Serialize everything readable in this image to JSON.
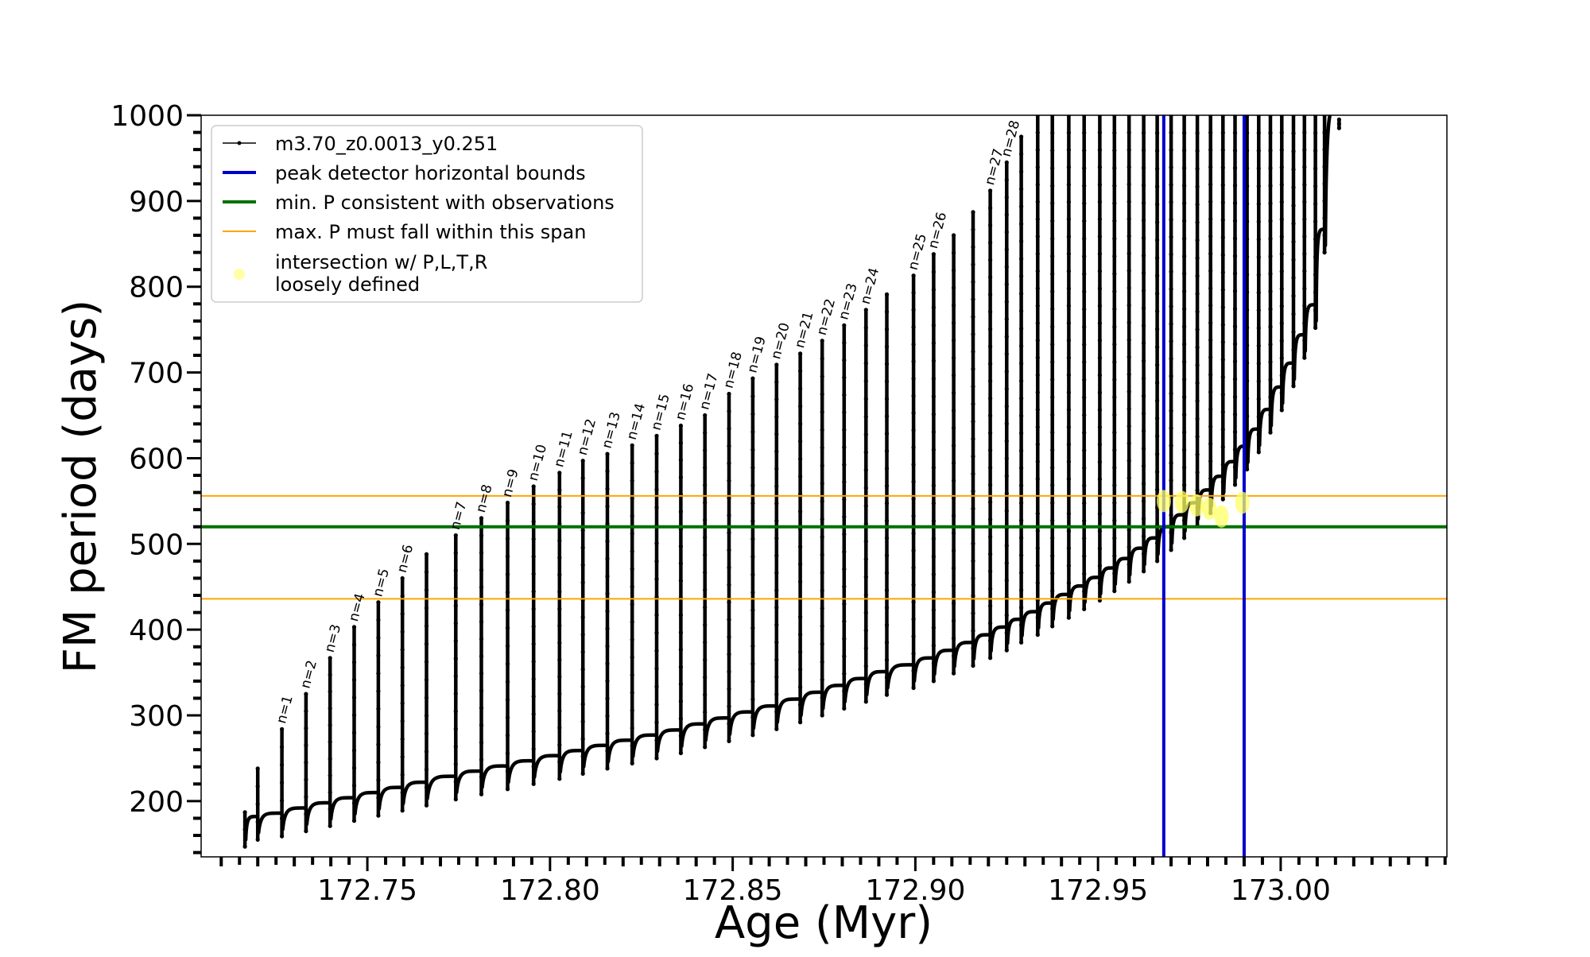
{
  "chart_data": {
    "type": "line",
    "title": "",
    "xlabel": "Age (Myr)",
    "ylabel": "FM period (days)",
    "xlim": [
      172.7045,
      173.0455
    ],
    "ylim": [
      135,
      1000
    ],
    "x_ticks": [
      172.75,
      172.8,
      172.85,
      172.9,
      172.95,
      173.0
    ],
    "x_tick_labels": [
      "172.75",
      "172.80",
      "172.85",
      "172.90",
      "172.95",
      "173.00"
    ],
    "y_ticks": [
      200,
      300,
      400,
      500,
      600,
      700,
      800,
      900,
      1000
    ],
    "y_tick_labels": [
      "200",
      "300",
      "400",
      "500",
      "600",
      "700",
      "800",
      "900",
      "1000"
    ],
    "grid": false,
    "legend_position": "top-left",
    "legend": [
      {
        "label": "m3.70_z0.0013_y0.251",
        "style": "line-marker",
        "color": "#000000"
      },
      {
        "label": "peak detector horizontal bounds",
        "style": "line",
        "color": "#0000cc"
      },
      {
        "label": "min. P consistent with observations",
        "style": "line",
        "color": "#007000"
      },
      {
        "label": "max. P must fall within this span",
        "style": "line",
        "color": "#ffa500"
      },
      {
        "label": "intersection w/ P,L,T,R\nloosely defined",
        "style": "marker",
        "color": "#ffff66"
      }
    ],
    "series": [
      {
        "name": "m3.70_z0.0013_y0.251",
        "color": "#000000",
        "pulses": [
          {
            "x": 172.7165,
            "lo": 147,
            "hi": 187
          },
          {
            "x": 172.72,
            "lo": 155,
            "hi": 238
          },
          {
            "x": 172.7266,
            "lo": 159,
            "hi": 284,
            "label": "n=1"
          },
          {
            "x": 172.7332,
            "lo": 165,
            "hi": 325,
            "label": "n=2"
          },
          {
            "x": 172.7398,
            "lo": 171,
            "hi": 367,
            "label": "n=3"
          },
          {
            "x": 172.7464,
            "lo": 177,
            "hi": 403,
            "label": "n=4"
          },
          {
            "x": 172.753,
            "lo": 183,
            "hi": 432,
            "label": "n=5"
          },
          {
            "x": 172.7596,
            "lo": 189,
            "hi": 460,
            "label": "n=6"
          },
          {
            "x": 172.7662,
            "lo": 195,
            "hi": 488
          },
          {
            "x": 172.7742,
            "lo": 202,
            "hi": 510,
            "label": "n=7"
          },
          {
            "x": 172.7812,
            "lo": 208,
            "hi": 530,
            "label": "n=8"
          },
          {
            "x": 172.7884,
            "lo": 214,
            "hi": 548,
            "label": "n=9"
          },
          {
            "x": 172.7955,
            "lo": 220,
            "hi": 567,
            "label": "n=10"
          },
          {
            "x": 172.8026,
            "lo": 226,
            "hi": 583,
            "label": "n=11"
          },
          {
            "x": 172.809,
            "lo": 232,
            "hi": 597,
            "label": "n=12"
          },
          {
            "x": 172.8157,
            "lo": 238,
            "hi": 605,
            "label": "n=13"
          },
          {
            "x": 172.8225,
            "lo": 244,
            "hi": 615,
            "label": "n=14"
          },
          {
            "x": 172.8292,
            "lo": 250,
            "hi": 626,
            "label": "n=15"
          },
          {
            "x": 172.8358,
            "lo": 256,
            "hi": 638,
            "label": "n=16"
          },
          {
            "x": 172.8424,
            "lo": 263,
            "hi": 650,
            "label": "n=17"
          },
          {
            "x": 172.849,
            "lo": 270,
            "hi": 675,
            "label": "n=18"
          },
          {
            "x": 172.8555,
            "lo": 277,
            "hi": 693,
            "label": "n=19"
          },
          {
            "x": 172.862,
            "lo": 284,
            "hi": 709,
            "label": "n=20"
          },
          {
            "x": 172.8685,
            "lo": 292,
            "hi": 722,
            "label": "n=21"
          },
          {
            "x": 172.8745,
            "lo": 300,
            "hi": 737,
            "label": "n=22"
          },
          {
            "x": 172.8805,
            "lo": 308,
            "hi": 755,
            "label": "n=23"
          },
          {
            "x": 172.8865,
            "lo": 316,
            "hi": 773,
            "label": "n=24"
          },
          {
            "x": 172.8922,
            "lo": 324,
            "hi": 791
          },
          {
            "x": 172.8995,
            "lo": 332,
            "hi": 813,
            "label": "n=25"
          },
          {
            "x": 172.905,
            "lo": 340,
            "hi": 838,
            "label": "n=26"
          },
          {
            "x": 172.9105,
            "lo": 349,
            "hi": 860
          },
          {
            "x": 172.9158,
            "lo": 358,
            "hi": 887
          },
          {
            "x": 172.9205,
            "lo": 367,
            "hi": 912,
            "label": "n=27"
          },
          {
            "x": 172.925,
            "lo": 376,
            "hi": 945,
            "label": "n=28"
          },
          {
            "x": 172.929,
            "lo": 385,
            "hi": 975
          },
          {
            "x": 172.9335,
            "lo": 394,
            "hi": 1000
          },
          {
            "x": 172.9375,
            "lo": 404,
            "hi": 1000
          },
          {
            "x": 172.942,
            "lo": 414,
            "hi": 1000
          },
          {
            "x": 172.9462,
            "lo": 424,
            "hi": 1000
          },
          {
            "x": 172.9505,
            "lo": 434,
            "hi": 1000
          },
          {
            "x": 172.9545,
            "lo": 445,
            "hi": 1000
          },
          {
            "x": 172.9585,
            "lo": 456,
            "hi": 1000
          },
          {
            "x": 172.9625,
            "lo": 468,
            "hi": 1000
          },
          {
            "x": 172.9662,
            "lo": 480,
            "hi": 1000
          },
          {
            "x": 172.97,
            "lo": 493,
            "hi": 1000
          },
          {
            "x": 172.9736,
            "lo": 507,
            "hi": 1000
          },
          {
            "x": 172.9772,
            "lo": 521,
            "hi": 1000
          },
          {
            "x": 172.9808,
            "lo": 536,
            "hi": 1000
          },
          {
            "x": 172.9842,
            "lo": 552,
            "hi": 1000
          },
          {
            "x": 172.9875,
            "lo": 569,
            "hi": 1000
          },
          {
            "x": 172.9908,
            "lo": 587,
            "hi": 1000
          },
          {
            "x": 172.994,
            "lo": 607,
            "hi": 1000
          },
          {
            "x": 172.9972,
            "lo": 630,
            "hi": 1000
          },
          {
            "x": 173.0003,
            "lo": 656,
            "hi": 1000
          },
          {
            "x": 173.0035,
            "lo": 684,
            "hi": 1000
          },
          {
            "x": 173.0065,
            "lo": 717,
            "hi": 1000
          },
          {
            "x": 173.0095,
            "lo": 752,
            "hi": 1000
          },
          {
            "x": 173.012,
            "lo": 840,
            "hi": 1000
          },
          {
            "x": 173.016,
            "lo": 985,
            "hi": 995
          }
        ]
      }
    ],
    "reference_lines": {
      "vertical_blue": [
        172.968,
        172.99
      ],
      "horizontal_green": [
        520
      ],
      "horizontal_orange": [
        436,
        556
      ]
    },
    "highlight_points": [
      {
        "x": 172.968,
        "y": 550
      },
      {
        "x": 172.973,
        "y": 549
      },
      {
        "x": 172.977,
        "y": 545
      },
      {
        "x": 172.9805,
        "y": 541
      },
      {
        "x": 172.9838,
        "y": 532
      },
      {
        "x": 172.9895,
        "y": 548
      }
    ]
  }
}
